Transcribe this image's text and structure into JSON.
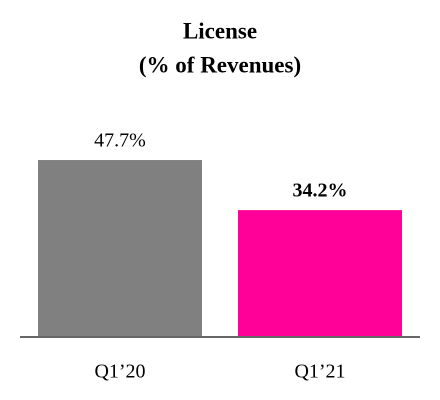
{
  "chart_data": {
    "type": "bar",
    "title": "License",
    "subtitle": "(% of Revenues)",
    "categories": [
      "Q1’20",
      "Q1’21"
    ],
    "values": [
      47.7,
      34.2
    ],
    "value_labels": [
      "47.7%",
      "34.2%"
    ],
    "colors": [
      "#808080",
      "#ff0099"
    ]
  }
}
